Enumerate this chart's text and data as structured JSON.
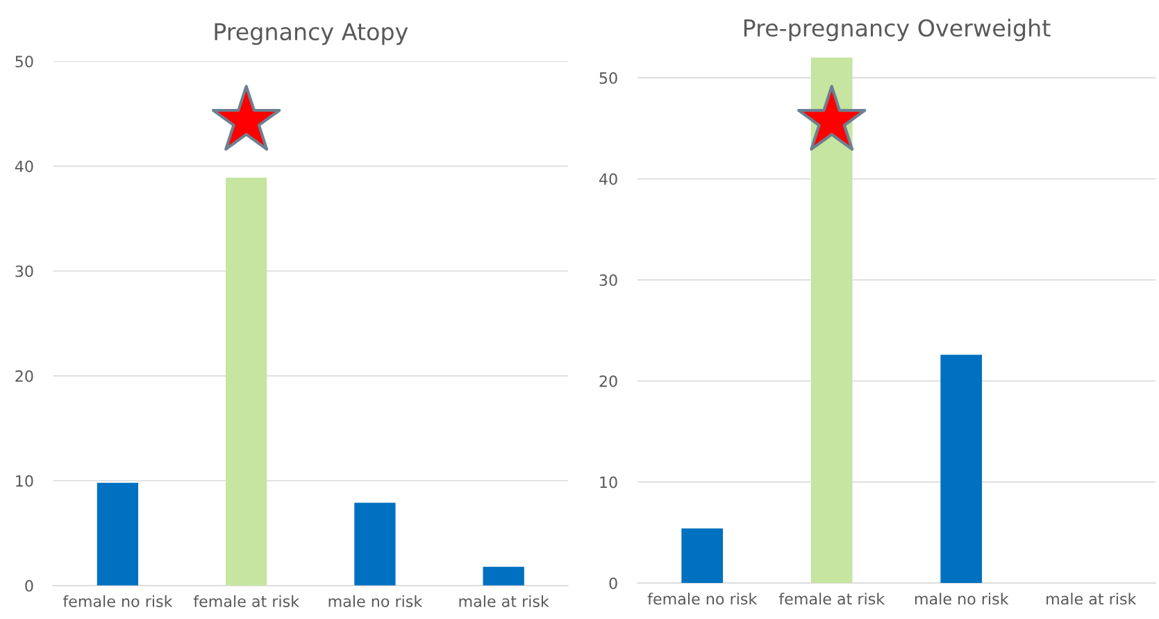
{
  "chart_data": [
    {
      "type": "bar",
      "title": "Pregnancy Atopy",
      "categories": [
        "female no risk",
        "female at risk",
        "male no risk",
        "male at risk"
      ],
      "values": [
        9.8,
        38.9,
        7.9,
        1.8
      ],
      "colors": [
        "#0070c0",
        "#c6e5a0",
        "#0070c0",
        "#0070c0"
      ],
      "ylim": [
        0,
        50
      ],
      "yticks": [
        0,
        10,
        20,
        30,
        40,
        50
      ],
      "grid": "y"
    },
    {
      "type": "bar",
      "title": "Pre-pregnancy Overweight",
      "categories": [
        "female no risk",
        "female at risk",
        "male no risk",
        "male at risk"
      ],
      "values": [
        5.4,
        52,
        22.6,
        0
      ],
      "colors": [
        "#0070c0",
        "#c6e5a0",
        "#0070c0",
        "#0070c0"
      ],
      "ylim": [
        0,
        52
      ],
      "yticks": [
        0,
        10,
        20,
        30,
        40,
        50
      ],
      "grid": "y"
    }
  ]
}
